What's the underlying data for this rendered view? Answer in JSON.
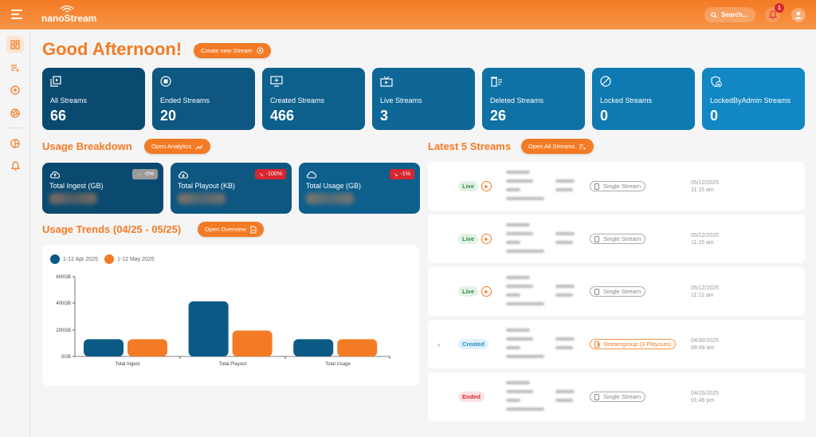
{
  "topbar": {
    "logo": "nanoStream",
    "search_placeholder": "Search...",
    "notification_count": "1"
  },
  "sidebar": {
    "items": [
      {
        "name": "dashboard",
        "icon": "dashboard-icon",
        "active": true
      },
      {
        "name": "streams",
        "icon": "playlist-icon"
      },
      {
        "name": "create",
        "icon": "plus-circle-icon"
      },
      {
        "name": "aperture",
        "icon": "aperture-icon"
      },
      {
        "name": "analytics",
        "icon": "pie-chart-icon"
      },
      {
        "name": "notifications",
        "icon": "bell-icon"
      }
    ]
  },
  "header": {
    "greeting": "Good Afternoon!",
    "create_button": "Create new Stream"
  },
  "stats": [
    {
      "label": "All Streams",
      "value": "66",
      "icon": "playlist-play-icon",
      "color": "#0b4a70"
    },
    {
      "label": "Ended Streams",
      "value": "20",
      "icon": "stop-circle-icon",
      "color": "#0d5781"
    },
    {
      "label": "Created Streams",
      "value": "466",
      "icon": "monitor-plus-icon",
      "color": "#0d5f8c"
    },
    {
      "label": "Live Streams",
      "value": "3",
      "icon": "tv-play-icon",
      "color": "#0e6797"
    },
    {
      "label": "Deleted Streams",
      "value": "26",
      "icon": "trash-list-icon",
      "color": "#0f71a4"
    },
    {
      "label": "Locked Streams",
      "value": "0",
      "icon": "block-icon",
      "color": "#0f7ab1"
    },
    {
      "label": "LockedByAdmin Streams",
      "value": "0",
      "icon": "shield-lock-icon",
      "color": "#1187c3"
    }
  ],
  "usage_breakdown": {
    "title": "Usage Breakdown",
    "button": "Open Analytics",
    "cards": [
      {
        "label": "Total Ingest (GB)",
        "badge": "-0%",
        "badge_color": "#9a9a9a",
        "badge_icon": "arrow-right-icon",
        "icon": "cloud-upload-icon",
        "color": "#0b4a70"
      },
      {
        "label": "Total Playout (KB)",
        "badge": "-100%",
        "badge_color": "#d8262f",
        "badge_icon": "trend-down-icon",
        "icon": "cloud-download-icon",
        "color": "#0d5781"
      },
      {
        "label": "Total Usage (GB)",
        "badge": "-1%",
        "badge_color": "#d8262f",
        "badge_icon": "trend-down-icon",
        "icon": "cloud-icon",
        "color": "#0d5f8c"
      }
    ]
  },
  "usage_trends": {
    "title": "Usage Trends (04/25 - 05/25)",
    "button": "Open Overview"
  },
  "chart_data": {
    "type": "bar",
    "title": "",
    "categories": [
      "Total Ingest",
      "Total Playout",
      "Total Usage"
    ],
    "series": [
      {
        "name": "1-12 Apr 2025",
        "color": "#0b5a85",
        "values": [
          130,
          415,
          130
        ]
      },
      {
        "name": "1-12 May 2025",
        "color": "#f47b25",
        "values": [
          130,
          195,
          130
        ]
      }
    ],
    "yticks": [
      "0GB",
      "200GB",
      "400GB",
      "600GB"
    ],
    "ylim": [
      0,
      600
    ],
    "xlabel": "",
    "ylabel": "",
    "grid": false,
    "legend_position": "top-left"
  },
  "latest_streams": {
    "title": "Latest 5 Streams",
    "button": "Open All Streams",
    "rows": [
      {
        "status": "Live",
        "type": "Single Stream",
        "date": "05/12/2025",
        "time": "11:15 am",
        "expandable": false
      },
      {
        "status": "Live",
        "type": "Single Stream",
        "date": "05/12/2025",
        "time": "11:15 am",
        "expandable": false
      },
      {
        "status": "Live",
        "type": "Single Stream",
        "date": "05/12/2025",
        "time": "11:12 am",
        "expandable": false
      },
      {
        "status": "Created",
        "type": "Streamgroup (3 Playouts)",
        "date": "04/30/2025",
        "time": "08:49 am",
        "expandable": true
      },
      {
        "status": "Ended",
        "type": "Single Stream",
        "date": "04/15/2025",
        "time": "01:46 pm",
        "expandable": false
      }
    ]
  },
  "colors": {
    "accent": "#f47b25",
    "live_bg": "#e3f2e6",
    "live_fg": "#2e8b45",
    "created_bg": "#e1f0fa",
    "created_fg": "#1f8fcf",
    "ended_bg": "#fbe3e4",
    "ended_fg": "#d8262f"
  }
}
